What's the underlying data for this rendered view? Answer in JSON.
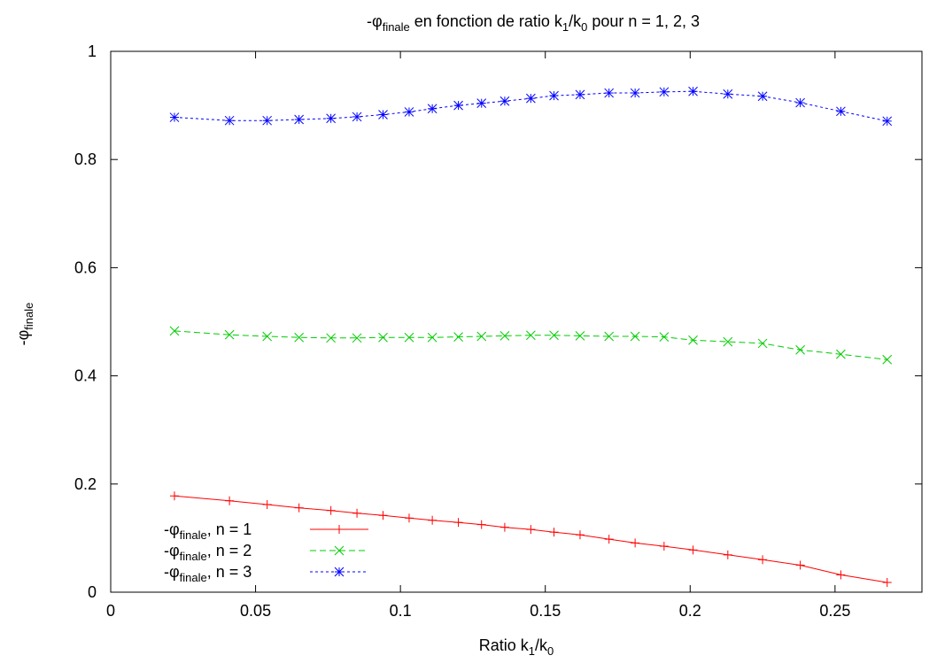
{
  "chart_data": {
    "type": "line",
    "title": {
      "prefix": "-φ",
      "sub": "finale",
      "middle": " en fonction de ratio k",
      "sub1": "1",
      "slash": "/k",
      "sub0": "0",
      "suffix": " pour n = 1, 2, 3"
    },
    "xlabel": {
      "text": "Ratio k",
      "sub1": "1",
      "slash": "/k",
      "sub0": "0"
    },
    "ylabel": {
      "prefix": "-φ",
      "sub": "finale"
    },
    "xlim": [
      0,
      0.28
    ],
    "ylim": [
      0,
      1
    ],
    "xticks": [
      0,
      0.05,
      0.1,
      0.15,
      0.2,
      0.25
    ],
    "xtick_labels": [
      "0",
      "0.05",
      "0.1",
      "0.15",
      "0.2",
      "0.25"
    ],
    "yticks": [
      0,
      0.2,
      0.4,
      0.6,
      0.8,
      1
    ],
    "ytick_labels": [
      "0",
      "0.2",
      "0.4",
      "0.6",
      "0.8",
      "1"
    ],
    "grid": false,
    "legend_position": "bottom-left",
    "x": [
      0.022,
      0.041,
      0.054,
      0.065,
      0.076,
      0.085,
      0.094,
      0.103,
      0.111,
      0.12,
      0.128,
      0.136,
      0.145,
      0.153,
      0.162,
      0.172,
      0.181,
      0.191,
      0.201,
      0.213,
      0.225,
      0.238,
      0.252,
      0.268
    ],
    "series": [
      {
        "name": "n = 1",
        "legend_prefix": "-φ",
        "legend_sub": "finale",
        "legend_suffix": ", n = 1",
        "color": "#ff0000",
        "marker": "plus",
        "dash": "",
        "values": [
          0.178,
          0.169,
          0.162,
          0.156,
          0.151,
          0.146,
          0.142,
          0.137,
          0.133,
          0.129,
          0.125,
          0.12,
          0.116,
          0.111,
          0.106,
          0.098,
          0.091,
          0.085,
          0.078,
          0.069,
          0.06,
          0.05,
          0.032,
          0.018
        ]
      },
      {
        "name": "n = 2",
        "legend_prefix": "-φ",
        "legend_sub": "finale",
        "legend_suffix": ", n = 2",
        "color": "#00cc00",
        "marker": "cross",
        "dash": "7,4",
        "values": [
          0.483,
          0.476,
          0.473,
          0.471,
          0.47,
          0.47,
          0.471,
          0.471,
          0.471,
          0.472,
          0.473,
          0.474,
          0.475,
          0.475,
          0.474,
          0.473,
          0.473,
          0.472,
          0.466,
          0.463,
          0.46,
          0.448,
          0.44,
          0.43
        ]
      },
      {
        "name": "n = 3",
        "legend_prefix": "-φ",
        "legend_sub": "finale",
        "legend_suffix": ", n = 3",
        "color": "#0000ff",
        "marker": "star",
        "dash": "3,3",
        "values": [
          0.878,
          0.872,
          0.872,
          0.874,
          0.876,
          0.879,
          0.883,
          0.888,
          0.894,
          0.9,
          0.904,
          0.908,
          0.913,
          0.918,
          0.92,
          0.923,
          0.923,
          0.925,
          0.926,
          0.921,
          0.917,
          0.905,
          0.889,
          0.871
        ]
      }
    ]
  }
}
